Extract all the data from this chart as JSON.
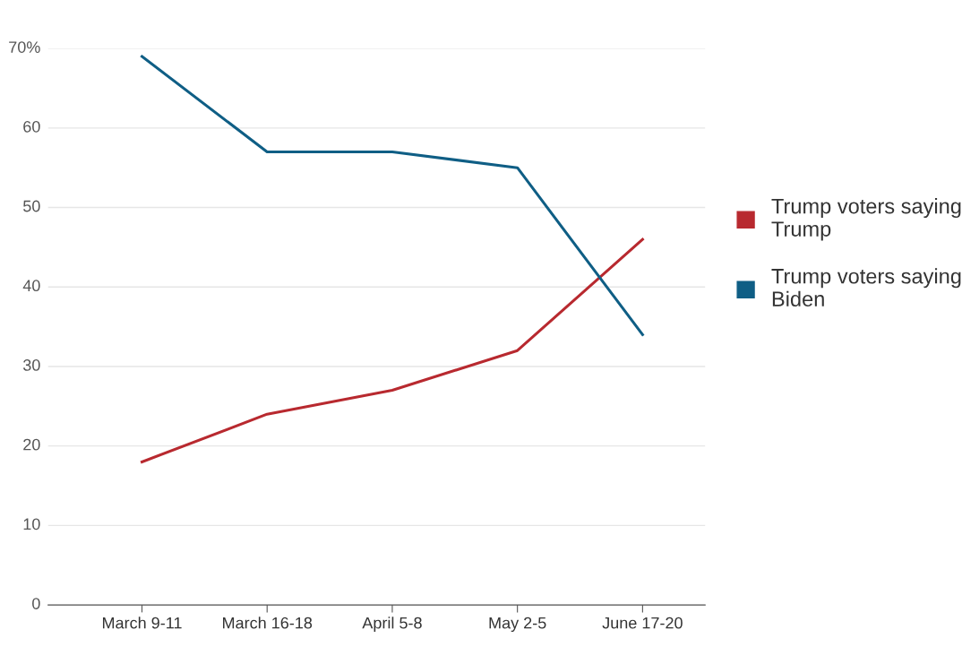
{
  "chart_data": {
    "type": "line",
    "categories": [
      "March 9-11",
      "March 16-18",
      "April 5-8",
      "May 2-5",
      "June 17-20"
    ],
    "series": [
      {
        "name": "Trump voters saying Trump",
        "color": "#b8292f",
        "values": [
          18,
          24,
          27,
          32,
          46
        ]
      },
      {
        "name": "Trump voters saying Biden",
        "color": "#0f5e85",
        "values": [
          69,
          57,
          57,
          55,
          34
        ]
      }
    ],
    "ylim": [
      0,
      70
    ],
    "yticks": [
      0,
      10,
      20,
      30,
      40,
      50,
      60,
      {
        "value": 70,
        "label": "70%"
      }
    ],
    "grid": "y",
    "legend": "right",
    "marker": "none",
    "line_style": "solid"
  }
}
